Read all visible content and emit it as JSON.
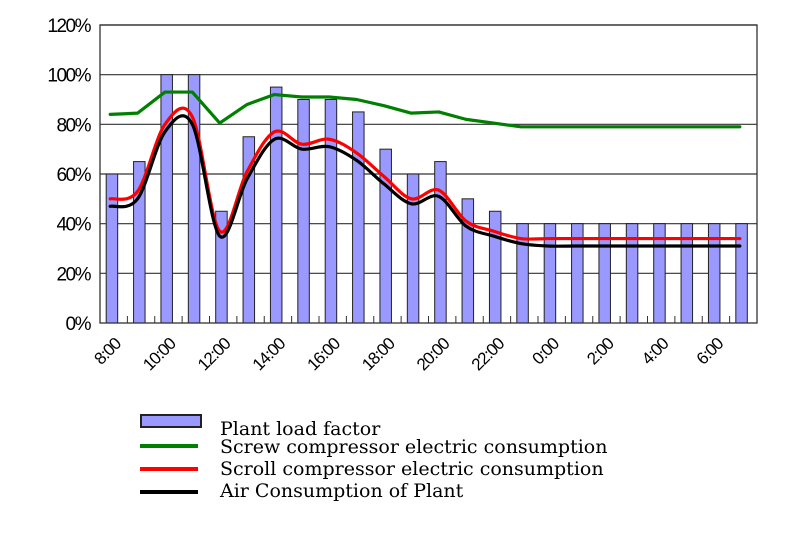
{
  "chart_data": {
    "type": "bar+line",
    "title": "",
    "xlabel": "",
    "ylabel": "",
    "ylim": [
      0,
      120
    ],
    "yticks": [
      "0%",
      "20%",
      "40%",
      "60%",
      "80%",
      "100%",
      "120%"
    ],
    "ytick_values": [
      0,
      20,
      40,
      60,
      80,
      100,
      120
    ],
    "grid": "horizontal",
    "categories": [
      "8:00",
      "9:00",
      "10:00",
      "11:00",
      "12:00",
      "13:00",
      "14:00",
      "15:00",
      "16:00",
      "17:00",
      "18:00",
      "19:00",
      "20:00",
      "21:00",
      "22:00",
      "23:00",
      "0:00",
      "1:00",
      "2:00",
      "3:00",
      "4:00",
      "5:00",
      "6:00",
      "7:00"
    ],
    "xtick_labels": [
      "8:00",
      "10:00",
      "12:00",
      "14:00",
      "16:00",
      "18:00",
      "20:00",
      "22:00",
      "0:00",
      "2:00",
      "4:00",
      "6:00"
    ],
    "series": [
      {
        "name": "Plant load factor",
        "kind": "bar",
        "color": "#9999ff",
        "values": [
          60,
          65,
          100,
          100,
          45,
          75,
          95,
          90,
          90,
          85,
          70,
          60,
          65,
          50,
          45,
          40,
          40,
          40,
          40,
          40,
          40,
          40,
          40,
          40
        ]
      },
      {
        "name": "Screw compressor electric consumption",
        "kind": "line",
        "color": "#008000",
        "values": [
          84,
          84.5,
          93,
          93,
          80.5,
          88,
          92,
          91,
          91,
          90,
          87.5,
          84.5,
          85,
          82,
          80.5,
          79,
          79,
          79,
          79,
          79,
          79,
          79,
          79,
          79
        ]
      },
      {
        "name": "Scroll compressor electric consumption",
        "kind": "line",
        "color": "#ff0000",
        "values": [
          50,
          53,
          80,
          83,
          37,
          61,
          77,
          72,
          74,
          68.5,
          59,
          50,
          53.5,
          41,
          37,
          34,
          34,
          34,
          34,
          34,
          34,
          34,
          34,
          34
        ]
      },
      {
        "name": "Air Consumption of Plant",
        "kind": "line",
        "color": "#000000",
        "values": [
          47,
          50,
          77,
          80,
          35,
          58,
          74,
          70,
          71,
          65.5,
          56,
          48,
          51,
          39,
          35,
          32,
          31,
          31,
          31,
          31,
          31,
          31,
          31,
          31
        ]
      }
    ],
    "legend_position": "bottom-center"
  }
}
